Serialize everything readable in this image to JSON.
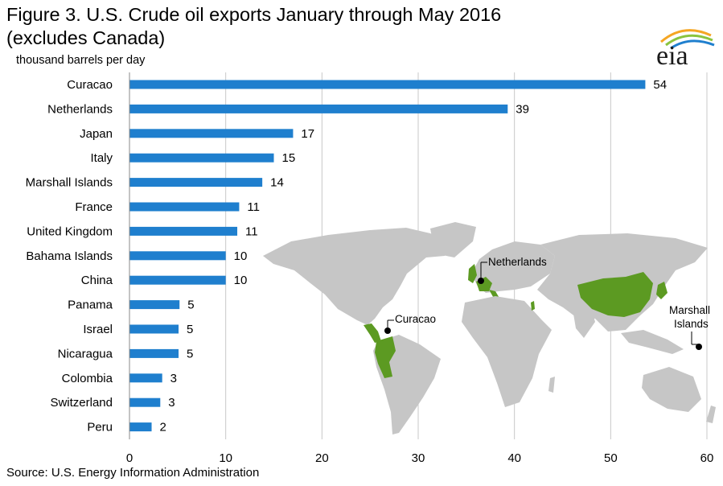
{
  "header": {
    "title_line1": "Figure 3. U.S. Crude oil exports January through May 2016",
    "title_line2": "(excludes Canada)",
    "unit": "thousand barrels per day",
    "logo_text": "eia"
  },
  "footer": {
    "source": "Source: U.S. Energy Information Administration"
  },
  "colors": {
    "bar": "#1f7fce",
    "grid": "#c8c8c8",
    "land": "#c6c6c6",
    "highlight": "#5c9a22"
  },
  "map_labels": {
    "curacao": "Curacao",
    "netherlands": "Netherlands",
    "marshall_line1": "Marshall",
    "marshall_line2": "Islands"
  },
  "chart_data": {
    "type": "bar",
    "orientation": "horizontal",
    "title": "Figure 3. U.S. Crude oil exports January through May 2016 (excludes Canada)",
    "unit": "thousand barrels per day",
    "categories": [
      "Curacao",
      "Netherlands",
      "Japan",
      "Italy",
      "Marshall Islands",
      "France",
      "United Kingdom",
      "Bahama Islands",
      "China",
      "Panama",
      "Israel",
      "Nicaragua",
      "Colombia",
      "Switzerland",
      "Peru"
    ],
    "values": [
      53.6,
      39.3,
      17,
      15,
      13.8,
      11.4,
      11.2,
      10,
      10,
      5.2,
      5.1,
      5.1,
      3.4,
      3.2,
      2.3
    ],
    "labels": [
      "54",
      "39",
      "17",
      "15",
      "14",
      "11",
      "11",
      "10",
      "10",
      "5",
      "5",
      "5",
      "3",
      "3",
      "2"
    ],
    "xlim": [
      0,
      60
    ],
    "xticks": [
      0,
      10,
      20,
      30,
      40,
      50,
      60
    ],
    "grid": "vertical",
    "source": "Source: U.S. Energy Information Administration"
  }
}
